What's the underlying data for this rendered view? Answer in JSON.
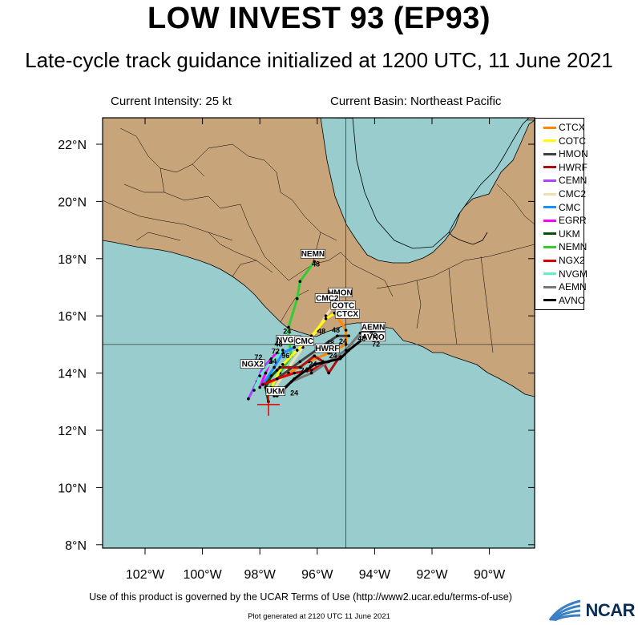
{
  "title": "LOW INVEST 93 (EP93)",
  "subtitle": "Late-cycle track guidance initialized at 1200 UTC, 11 June 2021",
  "current_intensity": "Current Intensity: 25 kt",
  "current_basin": "Current Basin: Northeast Pacific",
  "lat_labels": [
    "22°N",
    "20°N",
    "18°N",
    "16°N",
    "14°N",
    "12°N",
    "10°N",
    "8°N"
  ],
  "lon_labels": [
    "102°W",
    "100°W",
    "98°W",
    "96°W",
    "94°W",
    "92°W",
    "90°W"
  ],
  "legend": [
    {
      "name": "CTCX",
      "color": "#ff8800"
    },
    {
      "name": "COTC",
      "color": "#ffff00"
    },
    {
      "name": "HMON",
      "color": "#404040"
    },
    {
      "name": "HWRF",
      "color": "#aa1111"
    },
    {
      "name": "CEMN",
      "color": "#aa44ff"
    },
    {
      "name": "CMC2",
      "color": "#f0e0b0"
    },
    {
      "name": "CMC",
      "color": "#1e90ff"
    },
    {
      "name": "EGRR",
      "color": "#ff00ff"
    },
    {
      "name": "UKM",
      "color": "#005500"
    },
    {
      "name": "NEMN",
      "color": "#33cc33"
    },
    {
      "name": "NGX2",
      "color": "#dd0000"
    },
    {
      "name": "NVGM",
      "color": "#66eecc"
    },
    {
      "name": "AEMN",
      "color": "#777777"
    },
    {
      "name": "AVNO",
      "color": "#000000"
    }
  ],
  "colors": {
    "land": "#c8a47a",
    "ocean": "#99cccc",
    "grid": "#3a3a3a"
  },
  "tracks": [
    {
      "name": "NEMN",
      "color": "#33cc33",
      "points": [
        [
          97.7,
          13.4
        ],
        [
          97.3,
          14.0
        ],
        [
          96.9,
          14.6
        ],
        [
          97.0,
          15.2
        ],
        [
          97.0,
          15.6
        ],
        [
          96.7,
          16.6
        ],
        [
          96.6,
          17.2
        ],
        [
          96.1,
          17.9
        ]
      ]
    },
    {
      "name": "CMC2",
      "color": "#f0e0b0",
      "points": [
        [
          97.6,
          13.3
        ],
        [
          97.0,
          14.2
        ],
        [
          96.5,
          14.9
        ],
        [
          96.0,
          15.5
        ],
        [
          95.7,
          16.0
        ],
        [
          95.4,
          16.4
        ]
      ]
    },
    {
      "name": "COTC",
      "color": "#ffff00",
      "points": [
        [
          97.6,
          13.5
        ],
        [
          97.2,
          14.3
        ],
        [
          96.7,
          14.8
        ],
        [
          96.2,
          15.3
        ],
        [
          95.7,
          15.9
        ],
        [
          95.2,
          16.2
        ]
      ]
    },
    {
      "name": "CTCX",
      "color": "#ff8800",
      "points": [
        [
          97.8,
          13.6
        ],
        [
          97.0,
          14.0
        ],
        [
          96.3,
          14.4
        ],
        [
          95.6,
          14.7
        ],
        [
          95.0,
          15.0
        ],
        [
          95.0,
          15.5
        ],
        [
          95.4,
          16.1
        ],
        [
          94.9,
          16.1
        ]
      ]
    },
    {
      "name": "HMON",
      "color": "#404040",
      "points": [
        [
          97.4,
          13.8
        ],
        [
          96.6,
          14.4
        ],
        [
          95.9,
          14.9
        ],
        [
          95.3,
          15.3
        ],
        [
          94.9,
          15.3
        ]
      ]
    },
    {
      "name": "HWRF",
      "color": "#aa1111",
      "points": [
        [
          97.8,
          13.7
        ],
        [
          97.3,
          14.2
        ],
        [
          96.6,
          14.2
        ],
        [
          96.1,
          14.6
        ],
        [
          95.8,
          14.4
        ],
        [
          95.6,
          14.0
        ],
        [
          95.2,
          14.6
        ]
      ]
    },
    {
      "name": "CEMN",
      "color": "#aa44ff",
      "points": [
        [
          98.4,
          13.1
        ],
        [
          98.1,
          13.7
        ],
        [
          97.9,
          14.2
        ],
        [
          97.5,
          14.6
        ]
      ]
    },
    {
      "name": "CMC",
      "color": "#1e90ff",
      "points": [
        [
          97.9,
          13.6
        ],
        [
          97.5,
          14.2
        ],
        [
          97.2,
          14.7
        ],
        [
          96.8,
          14.9
        ]
      ]
    },
    {
      "name": "EGRR",
      "color": "#ff00ff",
      "points": [
        [
          98.0,
          13.5
        ],
        [
          97.8,
          14.0
        ],
        [
          97.6,
          14.5
        ],
        [
          97.4,
          14.7
        ]
      ]
    },
    {
      "name": "UKM",
      "color": "#005500",
      "points": [
        [
          97.7,
          13.0
        ],
        [
          97.8,
          13.5
        ],
        [
          97.6,
          13.9
        ],
        [
          97.4,
          14.1
        ]
      ]
    },
    {
      "name": "NGX2",
      "color": "#dd0000",
      "points": [
        [
          97.9,
          13.6
        ],
        [
          97.4,
          13.8
        ],
        [
          96.8,
          14.0
        ],
        [
          96.2,
          14.1
        ],
        [
          95.8,
          14.3
        ]
      ]
    },
    {
      "name": "NVGM",
      "color": "#66eecc",
      "points": [
        [
          98.2,
          13.4
        ],
        [
          98.0,
          13.9
        ],
        [
          97.6,
          14.4
        ],
        [
          97.2,
          14.8
        ]
      ]
    },
    {
      "name": "AEMN",
      "color": "#777777",
      "points": [
        [
          97.5,
          13.2
        ],
        [
          96.9,
          13.7
        ],
        [
          96.2,
          14.0
        ],
        [
          95.6,
          14.4
        ],
        [
          95.0,
          14.8
        ],
        [
          94.5,
          15.4
        ],
        [
          94.0,
          15.5
        ]
      ]
    },
    {
      "name": "AVNO",
      "color": "#000000",
      "points": [
        [
          97.4,
          13.2
        ],
        [
          96.8,
          13.8
        ],
        [
          96.1,
          14.3
        ],
        [
          95.2,
          14.5
        ],
        [
          94.9,
          14.8
        ],
        [
          94.4,
          15.2
        ],
        [
          94.0,
          15.5
        ]
      ]
    }
  ],
  "track_labels": [
    {
      "text": "NEMN",
      "lon": 96.15,
      "lat": 18.1
    },
    {
      "text": "48",
      "lon": 96.05,
      "lat": 17.75
    },
    {
      "text": "HMON",
      "lon": 95.2,
      "lat": 16.75
    },
    {
      "text": "CMC2",
      "lon": 95.65,
      "lat": 16.55
    },
    {
      "text": "COTC",
      "lon": 95.1,
      "lat": 16.3
    },
    {
      "text": "CTCX",
      "lon": 94.95,
      "lat": 16.0
    },
    {
      "text": "AEMN",
      "lon": 94.05,
      "lat": 15.55
    },
    {
      "text": "AVNO",
      "lon": 94.05,
      "lat": 15.2
    },
    {
      "text": "72",
      "lon": 94.05,
      "lat": 15.25
    },
    {
      "text": "72",
      "lon": 93.95,
      "lat": 14.95
    },
    {
      "text": "48",
      "lon": 94.45,
      "lat": 15.15
    },
    {
      "text": "48",
      "lon": 95.35,
      "lat": 15.45
    },
    {
      "text": "48",
      "lon": 95.85,
      "lat": 15.4
    },
    {
      "text": "48",
      "lon": 95.55,
      "lat": 15.0
    },
    {
      "text": "24",
      "lon": 95.1,
      "lat": 15.05
    },
    {
      "text": "24",
      "lon": 95.75,
      "lat": 14.75
    },
    {
      "text": "24",
      "lon": 97.05,
      "lat": 15.4
    },
    {
      "text": "NVGM",
      "lon": 97.0,
      "lat": 15.1
    },
    {
      "text": "CMC",
      "lon": 96.45,
      "lat": 15.05
    },
    {
      "text": "48",
      "lon": 97.35,
      "lat": 14.95
    },
    {
      "text": "96",
      "lon": 97.1,
      "lat": 14.55
    },
    {
      "text": "72",
      "lon": 97.45,
      "lat": 14.7
    },
    {
      "text": "24",
      "lon": 97.55,
      "lat": 14.35
    },
    {
      "text": "HWRF",
      "lon": 95.65,
      "lat": 14.8
    },
    {
      "text": "24",
      "lon": 95.45,
      "lat": 14.55
    },
    {
      "text": "24",
      "lon": 96.45,
      "lat": 14.05
    },
    {
      "text": "24",
      "lon": 96.15,
      "lat": 14.25
    },
    {
      "text": "NGX2",
      "lon": 98.25,
      "lat": 14.25
    },
    {
      "text": "72",
      "lon": 98.05,
      "lat": 14.5
    },
    {
      "text": "24",
      "lon": 96.8,
      "lat": 13.25
    },
    {
      "text": "UKM",
      "lon": 97.45,
      "lat": 13.3
    }
  ],
  "current_position": {
    "lon": 97.7,
    "lat": 12.9
  },
  "footer": "Use of this product is governed by the UCAR Terms of Use (http://www2.ucar.edu/terms-of-use)",
  "plot_generated": "Plot generated at 2120 UTC   11 June 2021",
  "logo_text": "NCAR"
}
